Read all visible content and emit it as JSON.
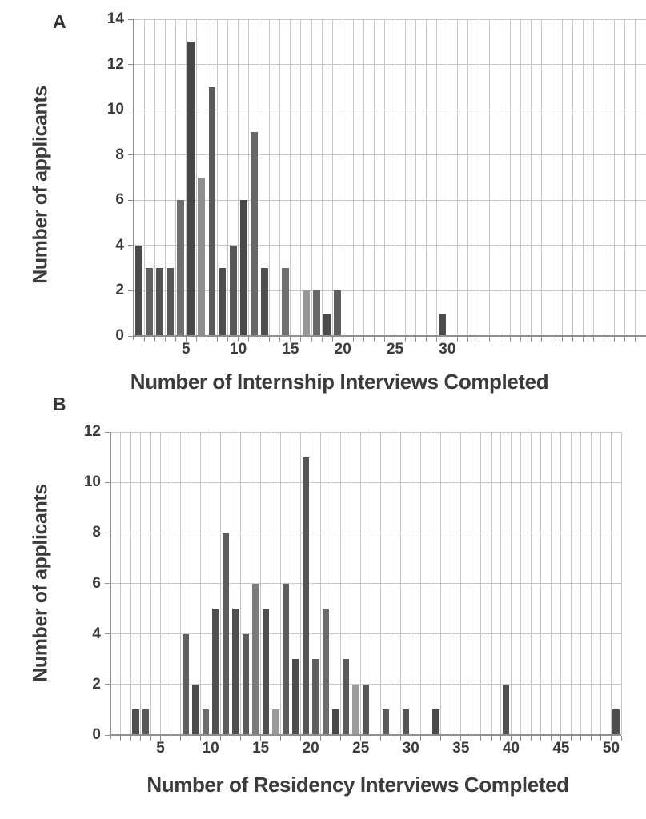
{
  "figure": {
    "background": "#ffffff",
    "text_color": "#3b3b3b",
    "grid_color": "#c6c6c6",
    "axis_color": "#8f8f8f"
  },
  "chart_data": [
    {
      "panel_label": "A",
      "type": "bar",
      "xlabel": "Number of Internship Interviews Completed",
      "ylabel": "Number of applicants",
      "xlim": [
        0,
        49
      ],
      "ylim": [
        0,
        14
      ],
      "xticks": [
        5,
        10,
        15,
        20,
        25,
        30
      ],
      "yticks": [
        0,
        2,
        4,
        6,
        8,
        10,
        12,
        14
      ],
      "grid": true,
      "legend": "none",
      "bars": [
        {
          "x": 1,
          "value": 4,
          "color": "#4a4a4a"
        },
        {
          "x": 2,
          "value": 3,
          "color": "#606060"
        },
        {
          "x": 3,
          "value": 3,
          "color": "#525252"
        },
        {
          "x": 4,
          "value": 3,
          "color": "#585858"
        },
        {
          "x": 5,
          "value": 6,
          "color": "#6e6e6e"
        },
        {
          "x": 6,
          "value": 13,
          "color": "#474747"
        },
        {
          "x": 7,
          "value": 7,
          "color": "#8e8e8e"
        },
        {
          "x": 8,
          "value": 11,
          "color": "#5a5a5a"
        },
        {
          "x": 9,
          "value": 3,
          "color": "#4e4e4e"
        },
        {
          "x": 10,
          "value": 4,
          "color": "#575757"
        },
        {
          "x": 11,
          "value": 6,
          "color": "#4a4a4a"
        },
        {
          "x": 12,
          "value": 9,
          "color": "#676767"
        },
        {
          "x": 13,
          "value": 3,
          "color": "#4f4f4f"
        },
        {
          "x": 15,
          "value": 3,
          "color": "#6f6f6f"
        },
        {
          "x": 17,
          "value": 2,
          "color": "#979797"
        },
        {
          "x": 18,
          "value": 2,
          "color": "#686868"
        },
        {
          "x": 19,
          "value": 1,
          "color": "#4b4b4b"
        },
        {
          "x": 20,
          "value": 2,
          "color": "#5d5d5d"
        },
        {
          "x": 30,
          "value": 1,
          "color": "#4c4c4c"
        }
      ]
    },
    {
      "panel_label": "B",
      "type": "bar",
      "xlabel": "Number of Residency Interviews Completed",
      "ylabel": "Number of applicants",
      "xlim": [
        0,
        51
      ],
      "ylim": [
        0,
        12
      ],
      "xticks": [
        5,
        10,
        15,
        20,
        25,
        30,
        35,
        40,
        45,
        50
      ],
      "yticks": [
        0,
        2,
        4,
        6,
        8,
        10,
        12
      ],
      "grid": true,
      "legend": "none",
      "bars": [
        {
          "x": 3,
          "value": 1,
          "color": "#4f4f4f"
        },
        {
          "x": 4,
          "value": 1,
          "color": "#585858"
        },
        {
          "x": 8,
          "value": 4,
          "color": "#5f5f5f"
        },
        {
          "x": 9,
          "value": 2,
          "color": "#4c4c4c"
        },
        {
          "x": 10,
          "value": 1,
          "color": "#6d6d6d"
        },
        {
          "x": 11,
          "value": 5,
          "color": "#515151"
        },
        {
          "x": 12,
          "value": 8,
          "color": "#5c5c5c"
        },
        {
          "x": 13,
          "value": 5,
          "color": "#4f4f4f"
        },
        {
          "x": 14,
          "value": 4,
          "color": "#5a5a5a"
        },
        {
          "x": 15,
          "value": 6,
          "color": "#7c7c7c"
        },
        {
          "x": 16,
          "value": 5,
          "color": "#505050"
        },
        {
          "x": 17,
          "value": 1,
          "color": "#9a9a9a"
        },
        {
          "x": 18,
          "value": 6,
          "color": "#5d5d5d"
        },
        {
          "x": 19,
          "value": 3,
          "color": "#4d4d4d"
        },
        {
          "x": 20,
          "value": 11,
          "color": "#565656"
        },
        {
          "x": 21,
          "value": 3,
          "color": "#5f5f5f"
        },
        {
          "x": 22,
          "value": 5,
          "color": "#6b6b6b"
        },
        {
          "x": 23,
          "value": 1,
          "color": "#484848"
        },
        {
          "x": 24,
          "value": 3,
          "color": "#595959"
        },
        {
          "x": 25,
          "value": 2,
          "color": "#9b9b9b"
        },
        {
          "x": 26,
          "value": 2,
          "color": "#555555"
        },
        {
          "x": 28,
          "value": 1,
          "color": "#5a5a5a"
        },
        {
          "x": 30,
          "value": 1,
          "color": "#555555"
        },
        {
          "x": 33,
          "value": 1,
          "color": "#4a4a4a"
        },
        {
          "x": 40,
          "value": 2,
          "color": "#515151"
        },
        {
          "x": 51,
          "value": 1,
          "color": "#4d4d4d"
        }
      ]
    }
  ]
}
